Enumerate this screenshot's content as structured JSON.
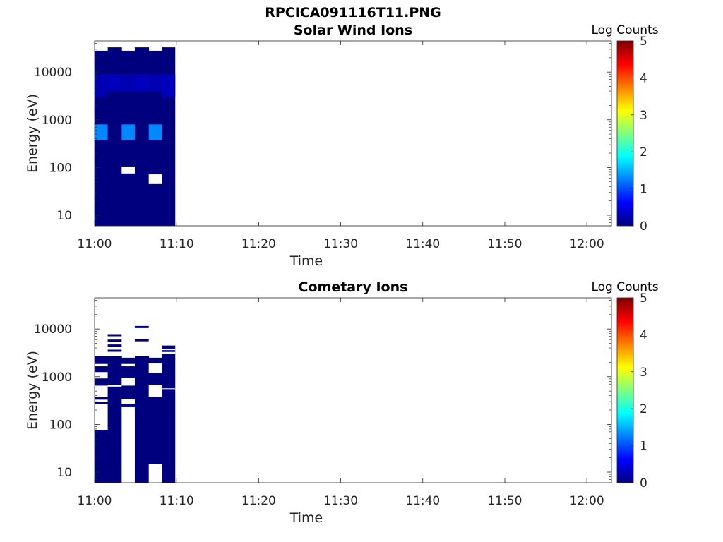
{
  "figure": {
    "title": "RPCICA091116T11.PNG"
  },
  "colormap": [
    "#00007f",
    "#0000ff",
    "#007fff",
    "#00ffff",
    "#7fff7f",
    "#ffff00",
    "#ff7f00",
    "#ff0000",
    "#7f0000"
  ],
  "chart_data": [
    {
      "type": "heatmap",
      "title": "Solar Wind Ions",
      "xlabel": "Time",
      "ylabel": "Energy (eV)",
      "yscale": "log",
      "xlim": [
        "11:00",
        "12:03"
      ],
      "ylim": [
        6,
        45000
      ],
      "x_ticks": [
        "11:00",
        "11:10",
        "11:20",
        "11:30",
        "11:40",
        "11:50",
        "12:00"
      ],
      "y_ticks": [
        "10",
        "100",
        "1000",
        "10000"
      ],
      "colorbar": {
        "label": "Log Counts",
        "range": [
          0,
          5
        ],
        "ticks": [
          "0",
          "1",
          "2",
          "3",
          "4",
          "5"
        ]
      },
      "columns": [
        {
          "t_start": "11:00.0",
          "t_end": "11:01.6",
          "e_max": 28000,
          "gaps": [],
          "cells": [
            {
              "e_lo": 380,
              "e_hi": 800,
              "log_counts": 1.3
            },
            {
              "e_lo": 3000,
              "e_hi": 9000,
              "log_counts": 0.25
            }
          ]
        },
        {
          "t_start": "11:01.6",
          "t_end": "11:03.3",
          "e_max": 33000,
          "gaps": [],
          "cells": [
            {
              "e_lo": 4000,
              "e_hi": 9000,
              "log_counts": 0.3
            }
          ]
        },
        {
          "t_start": "11:03.3",
          "t_end": "11:04.9",
          "e_max": 28000,
          "gaps": [
            {
              "e_lo": 75,
              "e_hi": 105
            }
          ],
          "cells": [
            {
              "e_lo": 380,
              "e_hi": 800,
              "log_counts": 1.3
            },
            {
              "e_lo": 4000,
              "e_hi": 9000,
              "log_counts": 0.25
            }
          ]
        },
        {
          "t_start": "11:04.9",
          "t_end": "11:06.6",
          "e_max": 33000,
          "gaps": [],
          "cells": [
            {
              "e_lo": 4000,
              "e_hi": 9000,
              "log_counts": 0.3
            }
          ]
        },
        {
          "t_start": "11:06.6",
          "t_end": "11:08.2",
          "e_max": 28000,
          "gaps": [
            {
              "e_lo": 45,
              "e_hi": 72
            }
          ],
          "cells": [
            {
              "e_lo": 380,
              "e_hi": 800,
              "log_counts": 1.3
            },
            {
              "e_lo": 4000,
              "e_hi": 9000,
              "log_counts": 0.25
            }
          ]
        },
        {
          "t_start": "11:08.2",
          "t_end": "11:09.8",
          "e_max": 33000,
          "gaps": [],
          "cells": [
            {
              "e_lo": 3000,
              "e_hi": 9000,
              "log_counts": 0.3
            }
          ]
        }
      ]
    },
    {
      "type": "heatmap",
      "title": "Cometary Ions",
      "xlabel": "Time",
      "ylabel": "Energy (eV)",
      "yscale": "log",
      "xlim": [
        "11:00",
        "12:03"
      ],
      "ylim": [
        6,
        45000
      ],
      "x_ticks": [
        "11:00",
        "11:10",
        "11:20",
        "11:30",
        "11:40",
        "11:50",
        "12:00"
      ],
      "y_ticks": [
        "10",
        "100",
        "1000",
        "10000"
      ],
      "colorbar": {
        "label": "Log Counts",
        "range": [
          0,
          5
        ],
        "ticks": [
          "0",
          "1",
          "2",
          "3",
          "4",
          "5"
        ]
      },
      "columns": [
        {
          "t_start": "11:00.0",
          "t_end": "11:01.6",
          "e_max": 2700,
          "gaps": [
            {
              "e_lo": 75,
              "e_hi": 270
            },
            {
              "e_lo": 300,
              "e_hi": 330
            },
            {
              "e_lo": 370,
              "e_hi": 650
            },
            {
              "e_lo": 920,
              "e_hi": 1250
            },
            {
              "e_lo": 1650,
              "e_hi": 1850
            }
          ],
          "cells": []
        },
        {
          "t_start": "11:01.6",
          "t_end": "11:03.3",
          "e_max": 2700,
          "gaps": [
            {
              "e_lo": 620,
              "e_hi": 680
            }
          ],
          "cells": []
        },
        {
          "t_start": "11:03.3",
          "t_end": "11:04.9",
          "e_max": 2500,
          "gaps": [
            {
              "e_lo": 6,
              "e_hi": 230
            },
            {
              "e_lo": 270,
              "e_hi": 340
            },
            {
              "e_lo": 650,
              "e_hi": 950
            },
            {
              "e_lo": 1650,
              "e_hi": 1850
            }
          ],
          "cells": []
        },
        {
          "t_start": "11:04.9",
          "t_end": "11:06.6",
          "e_max": 2700,
          "gaps": [],
          "cells": []
        },
        {
          "t_start": "11:06.6",
          "t_end": "11:08.2",
          "e_max": 2500,
          "gaps": [
            {
              "e_lo": 6,
              "e_hi": 15
            },
            {
              "e_lo": 380,
              "e_hi": 680
            },
            {
              "e_lo": 1200,
              "e_hi": 1900
            }
          ],
          "cells": []
        },
        {
          "t_start": "11:08.2",
          "t_end": "11:09.8",
          "e_max": 4500,
          "gaps": [
            {
              "e_lo": 550,
              "e_hi": 570
            },
            {
              "e_lo": 3050,
              "e_hi": 3300
            },
            {
              "e_lo": 3600,
              "e_hi": 3800
            }
          ],
          "cells": []
        }
      ],
      "streaks": [
        {
          "t_start": "11:01.6",
          "t_end": "11:03.3",
          "e": [
            7400,
            5700,
            4500,
            3500
          ]
        },
        {
          "t_start": "11:04.9",
          "t_end": "11:06.6",
          "e": [
            11000,
            5800
          ]
        }
      ]
    }
  ]
}
